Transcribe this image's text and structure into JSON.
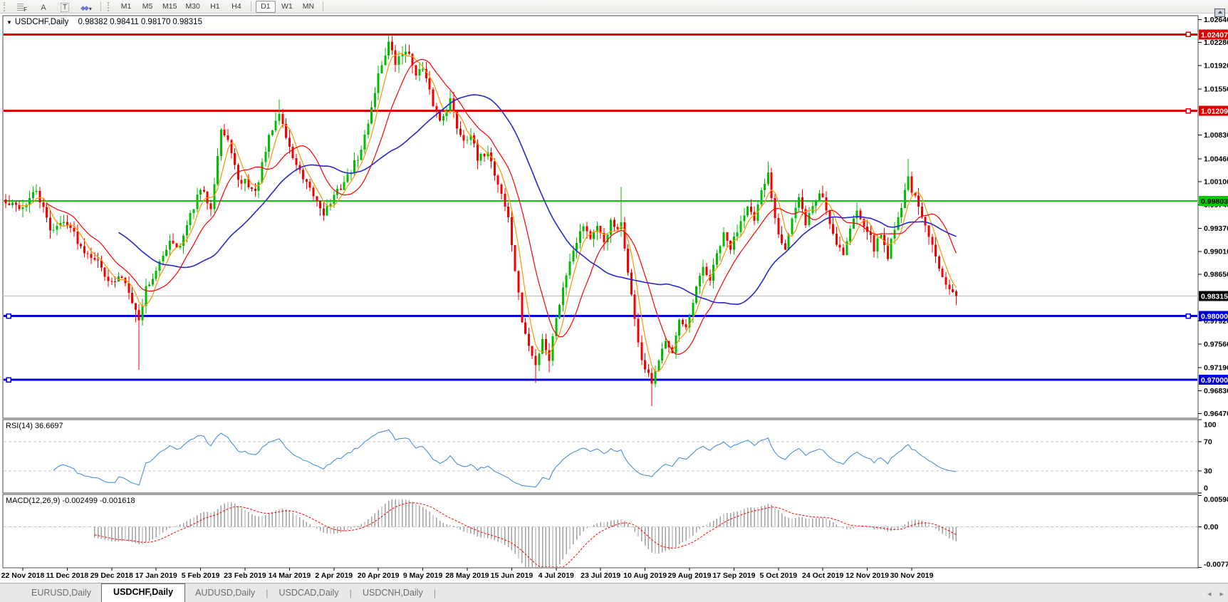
{
  "toolbar": {
    "tools": [
      {
        "id": "fibonacci-icon",
        "glyph": "F"
      },
      {
        "id": "text-icon",
        "glyph": "A"
      },
      {
        "id": "text-label-icon",
        "glyph": "T"
      },
      {
        "id": "arrows-dropdown-icon",
        "glyph": "◆◆"
      }
    ],
    "dropdown_arrow": "▾",
    "timeframes": [
      "M1",
      "M5",
      "M15",
      "M30",
      "H1",
      "H4",
      "D1",
      "W1",
      "MN"
    ],
    "active_timeframe": "D1"
  },
  "chart": {
    "expander_icon": "▼",
    "title": "USDCHF,Daily",
    "open": "0.98382",
    "high": "0.98411",
    "low": "0.98170",
    "close": "0.98315"
  },
  "indicators": {
    "rsi": {
      "label": "RSI(14)",
      "value": "36.6697"
    },
    "macd": {
      "label": "MACD(12,26,9)",
      "values": "-0.002499 -0.001618"
    }
  },
  "tabs": {
    "items": [
      "EURUSD,Daily",
      "USDCHF,Daily",
      "AUDUSD,Daily",
      "USDCAD,Daily",
      "USDCNH,Daily"
    ],
    "active": "USDCHF,Daily",
    "scroll_left_icon": "◂",
    "scroll_right_icon": "▸"
  },
  "colors": {
    "bull": "#00be00",
    "bear": "#f40000",
    "ma_fast": "#ff9500",
    "ma_mid": "#ff0000",
    "ma_slow": "#2828cc",
    "rsi_line": "#4a90d9",
    "macd_hist": "#a0a0a0",
    "macd_signal": "#ff0000",
    "level_red": "#dd0000",
    "level_green": "#00cc00",
    "level_blue": "#0000dd",
    "current_price_bg": "#000000",
    "dashed_level": "#c4c4c4",
    "current_price_line": "#bbbbbb"
  },
  "chart_data": {
    "type": "candlestick",
    "symbol": "USDCHF",
    "timeframe": "Daily",
    "current_bar": {
      "open": 0.98382,
      "high": 0.98411,
      "low": 0.9817,
      "close": 0.98315
    },
    "y_range": [
      0.964,
      1.027
    ],
    "price_axis_ticks": [
      "1.02640",
      "1.02280",
      "1.01920",
      "1.01550",
      "1.00830",
      "1.00460",
      "1.00100",
      "0.99740",
      "0.99370",
      "0.99010",
      "0.98650",
      "0.97920",
      "0.97560",
      "0.97190",
      "0.96830",
      "0.96470"
    ],
    "levels": [
      {
        "price": 1.02407,
        "label": "1.02407",
        "color": "#dd0000",
        "text": "#ffffff",
        "width": 3,
        "handles": [
          "right"
        ]
      },
      {
        "price": 1.01209,
        "label": "1.01209",
        "color": "#dd0000",
        "text": "#ffffff",
        "width": 3,
        "handles": [
          "right"
        ]
      },
      {
        "price": 0.99803,
        "label": "0.99803",
        "color": "#00cc00",
        "text": "#000000",
        "width": 2,
        "handles": []
      },
      {
        "price": 0.98,
        "label": "0.98000",
        "color": "#0000dd",
        "text": "#ffffff",
        "width": 3,
        "handles": [
          "left",
          "right"
        ]
      },
      {
        "price": 0.97,
        "label": "0.97000",
        "color": "#0000dd",
        "text": "#ffffff",
        "width": 3,
        "handles": [
          "left"
        ]
      }
    ],
    "current_price": {
      "price": 0.98315,
      "label": "0.98315"
    },
    "date_labels": [
      "22 Nov 2018",
      "11 Dec 2018",
      "29 Dec 2018",
      "17 Jan 2019",
      "5 Feb 2019",
      "23 Feb 2019",
      "14 Mar 2019",
      "2 Apr 2019",
      "20 Apr 2019",
      "9 May 2019",
      "28 May 2019",
      "15 Jun 2019",
      "4 Jul 2019",
      "23 Jul 2019",
      "10 Aug 2019",
      "29 Aug 2019",
      "17 Sep 2019",
      "5 Oct 2019",
      "24 Oct 2019",
      "12 Nov 2019",
      "30 Nov 2019"
    ],
    "bars_per_label": 13,
    "first_label_bar": 5,
    "candle_count": 279,
    "close_waypoints": [
      [
        0,
        0.9975
      ],
      [
        5,
        0.997
      ],
      [
        9,
        0.9996
      ],
      [
        13,
        0.9936
      ],
      [
        18,
        0.9948
      ],
      [
        22,
        0.9908
      ],
      [
        26,
        0.9892
      ],
      [
        31,
        0.985
      ],
      [
        34,
        0.9862
      ],
      [
        36,
        0.9842
      ],
      [
        39,
        0.9792
      ],
      [
        41,
        0.9845
      ],
      [
        44,
        0.9868
      ],
      [
        48,
        0.992
      ],
      [
        51,
        0.9908
      ],
      [
        55,
        0.9972
      ],
      [
        57,
        0.9998
      ],
      [
        60,
        0.9972
      ],
      [
        63,
        1.0092
      ],
      [
        66,
        1.006
      ],
      [
        68,
        1.0008
      ],
      [
        70,
        1.0012
      ],
      [
        73,
        0.9992
      ],
      [
        77,
        1.0078
      ],
      [
        80,
        1.0118
      ],
      [
        83,
        1.0062
      ],
      [
        87,
        1.0012
      ],
      [
        90,
        0.9988
      ],
      [
        93,
        0.9962
      ],
      [
        96,
        0.9986
      ],
      [
        100,
        1.0018
      ],
      [
        104,
        1.0058
      ],
      [
        107,
        1.0128
      ],
      [
        109,
        1.0178
      ],
      [
        112,
        1.0228
      ],
      [
        114,
        1.0195
      ],
      [
        117,
        1.0218
      ],
      [
        120,
        1.0182
      ],
      [
        122,
        1.0185
      ],
      [
        125,
        1.0132
      ],
      [
        127,
        1.0106
      ],
      [
        130,
        1.0138
      ],
      [
        132,
        1.0096
      ],
      [
        134,
        1.0076
      ],
      [
        136,
        1.0086
      ],
      [
        138,
        1.0042
      ],
      [
        141,
        1.006
      ],
      [
        143,
        1.0022
      ],
      [
        145,
        0.9992
      ],
      [
        147,
        0.9952
      ],
      [
        149,
        0.9872
      ],
      [
        151,
        0.9792
      ],
      [
        153,
        0.9752
      ],
      [
        155,
        0.9722
      ],
      [
        157,
        0.9766
      ],
      [
        159,
        0.9732
      ],
      [
        161,
        0.98
      ],
      [
        163,
        0.9842
      ],
      [
        165,
        0.989
      ],
      [
        167,
        0.992
      ],
      [
        169,
        0.9944
      ],
      [
        171,
        0.9922
      ],
      [
        173,
        0.9936
      ],
      [
        175,
        0.9916
      ],
      [
        177,
        0.9946
      ],
      [
        179,
        0.9932
      ],
      [
        180,
        0.9942
      ],
      [
        181,
        0.9906
      ],
      [
        182,
        0.9872
      ],
      [
        183,
        0.9832
      ],
      [
        184,
        0.9792
      ],
      [
        185,
        0.9762
      ],
      [
        186,
        0.9732
      ],
      [
        187,
        0.9716
      ],
      [
        189,
        0.9694
      ],
      [
        191,
        0.9726
      ],
      [
        193,
        0.9766
      ],
      [
        195,
        0.9746
      ],
      [
        197,
        0.9792
      ],
      [
        199,
        0.9776
      ],
      [
        200,
        0.9796
      ],
      [
        202,
        0.9842
      ],
      [
        204,
        0.9876
      ],
      [
        206,
        0.9856
      ],
      [
        208,
        0.9896
      ],
      [
        210,
        0.9926
      ],
      [
        212,
        0.9906
      ],
      [
        213,
        0.992
      ],
      [
        215,
        0.995
      ],
      [
        217,
        0.9976
      ],
      [
        219,
        0.9946
      ],
      [
        221,
        0.9992
      ],
      [
        223,
        1.0022
      ],
      [
        225,
        0.9956
      ],
      [
        226,
        0.9932
      ],
      [
        228,
        0.9906
      ],
      [
        230,
        0.9952
      ],
      [
        232,
        0.9982
      ],
      [
        234,
        0.9946
      ],
      [
        236,
        0.9972
      ],
      [
        238,
        0.9992
      ],
      [
        239,
        0.9986
      ],
      [
        241,
        0.9946
      ],
      [
        243,
        0.9916
      ],
      [
        245,
        0.9898
      ],
      [
        247,
        0.9936
      ],
      [
        249,
        0.9966
      ],
      [
        251,
        0.9946
      ],
      [
        252,
        0.9936
      ],
      [
        254,
        0.9906
      ],
      [
        256,
        0.9928
      ],
      [
        258,
        0.9894
      ],
      [
        260,
        0.994
      ],
      [
        262,
        0.9972
      ],
      [
        264,
        1.0018
      ],
      [
        265,
        0.9998
      ],
      [
        267,
        0.9968
      ],
      [
        269,
        0.9938
      ],
      [
        271,
        0.9908
      ],
      [
        273,
        0.9878
      ],
      [
        275,
        0.9854
      ],
      [
        277,
        0.984
      ],
      [
        278,
        0.98315
      ]
    ],
    "wick_overrides": [
      {
        "i": 38,
        "low": 0.979
      },
      {
        "i": 39,
        "low": 0.9716
      },
      {
        "i": 80,
        "high": 1.0139
      },
      {
        "i": 112,
        "high": 1.0239
      },
      {
        "i": 117,
        "high": 1.0226
      },
      {
        "i": 155,
        "low": 0.9695
      },
      {
        "i": 159,
        "low": 0.9712
      },
      {
        "i": 180,
        "high": 1.0002
      },
      {
        "i": 189,
        "low": 0.9659
      },
      {
        "i": 223,
        "high": 1.0042
      },
      {
        "i": 264,
        "high": 1.0046
      }
    ],
    "moving_averages": [
      {
        "period": 5,
        "color": "#ff9500"
      },
      {
        "period": 13,
        "color": "#ff0000"
      },
      {
        "period": 34,
        "color": "#2828cc"
      }
    ],
    "rsi": {
      "period": 14,
      "levels": [
        70,
        30
      ],
      "axis_ticks": [
        {
          "v": 100,
          "label": "100"
        },
        {
          "v": 70,
          "label": "70"
        },
        {
          "v": 30,
          "label": "30"
        },
        {
          "v": 0,
          "label": "0"
        }
      ]
    },
    "macd": {
      "fast": 12,
      "slow": 26,
      "signal": 9,
      "y_range": [
        -0.0078,
        0.0062
      ],
      "axis_ticks": [
        {
          "v": 0.005986,
          "label": "0.005986"
        },
        {
          "v": 0,
          "label": "0.00"
        },
        {
          "v": -0.00773,
          "label": "-0.00773"
        }
      ]
    }
  }
}
